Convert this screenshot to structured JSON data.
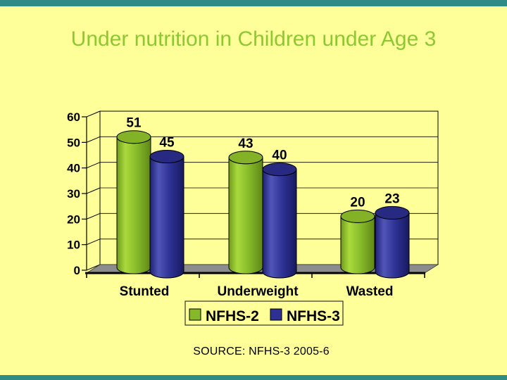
{
  "slide": {
    "title": "Under nutrition in Children under Age 3",
    "source_text": "SOURCE: NFHS-3 2005-6",
    "colors": {
      "background": "#FFFF99",
      "accent_bar": "#2E8B86",
      "title_text": "#8CC832",
      "series_nfhs2": "#86B929",
      "series_nfhs3": "#2E3193",
      "chart_floor": "#8C8C8C",
      "chart_text": "#000000"
    }
  },
  "chart_data": {
    "type": "bar",
    "style": "3d-cylinder",
    "title": "",
    "xlabel": "",
    "ylabel": "",
    "categories": [
      "Stunted",
      "Underweight",
      "Wasted"
    ],
    "series": [
      {
        "name": "NFHS-2",
        "color": "#86B929",
        "values": [
          51,
          43,
          20
        ]
      },
      {
        "name": "NFHS-3",
        "color": "#2E3193",
        "values": [
          45,
          40,
          23
        ]
      }
    ],
    "ylim": [
      0,
      60
    ],
    "ytick_interval": 10,
    "yticks": [
      0,
      10,
      20,
      30,
      40,
      50,
      60
    ],
    "grid": true,
    "data_labels": true,
    "legend_position": "bottom"
  }
}
